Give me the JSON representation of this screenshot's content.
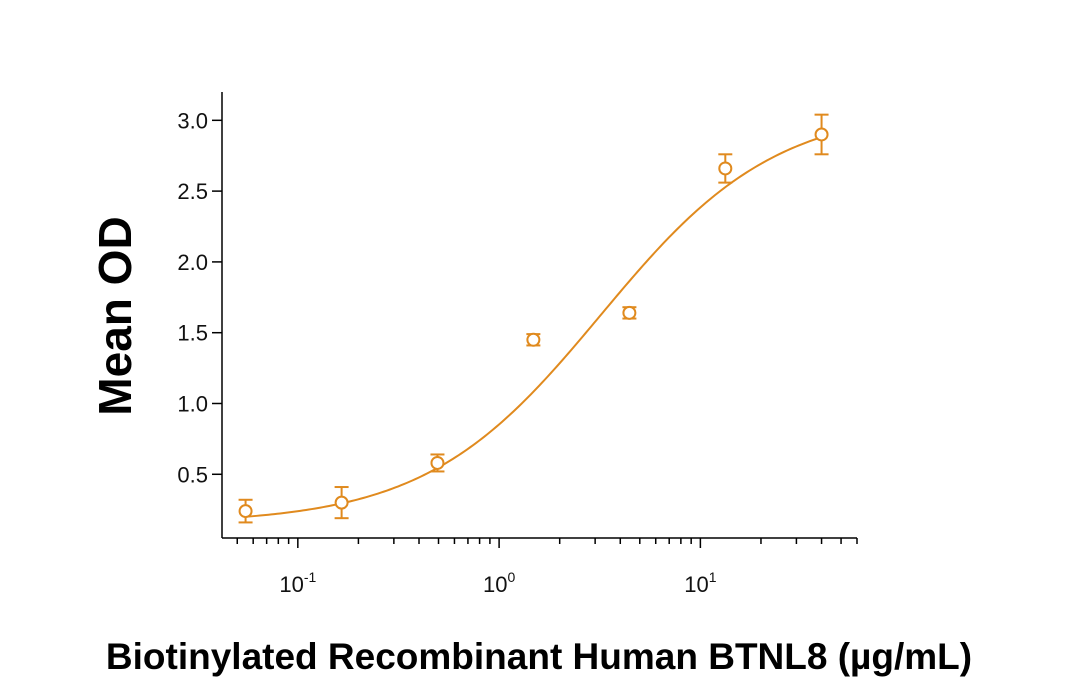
{
  "chart_data": {
    "type": "scatter",
    "title": "",
    "xlabel": "Biotinylated Recombinant Human BTNL8 (µg/mL)",
    "ylabel": "Mean OD",
    "x_scale": "log",
    "xlim": [
      0.042,
      60
    ],
    "ylim": [
      0.05,
      3.2
    ],
    "y_ticks": [
      "0.5",
      "1.0",
      "1.5",
      "2.0",
      "2.5",
      "3.0"
    ],
    "x_ticks": [
      {
        "base": "10",
        "exp": "-1",
        "value": 0.1
      },
      {
        "base": "10",
        "exp": "0",
        "value": 1
      },
      {
        "base": "10",
        "exp": "1",
        "value": 10
      }
    ],
    "grid": false,
    "legend": "none",
    "color": "#E08A1E",
    "series": [
      {
        "x": [
          0.055,
          0.165,
          0.494,
          1.48,
          4.44,
          13.3,
          40
        ],
        "y": [
          0.24,
          0.3,
          0.58,
          1.45,
          1.64,
          2.66,
          2.9
        ],
        "error": [
          0.08,
          0.11,
          0.06,
          0.04,
          0.04,
          0.1,
          0.14
        ]
      }
    ],
    "fit_curve": {
      "model": "4PL",
      "bottom": 0.15,
      "top": 3.1,
      "ec50": 3.2,
      "hill": 1.0
    }
  }
}
